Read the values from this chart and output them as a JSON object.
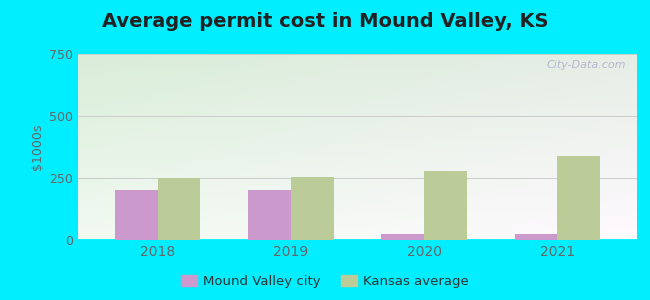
{
  "title": "Average permit cost in Mound Valley, KS",
  "ylabel": "$1000s",
  "years": [
    2018,
    2019,
    2020,
    2021
  ],
  "city_values": [
    200,
    200,
    25,
    25
  ],
  "avg_values": [
    248,
    253,
    278,
    340
  ],
  "city_color": "#cc99cc",
  "avg_color": "#bbcc99",
  "ylim": [
    0,
    750
  ],
  "yticks": [
    0,
    250,
    500,
    750
  ],
  "bar_width": 0.32,
  "outer_bg": "#00eeff",
  "title_fontsize": 14,
  "legend_labels": [
    "Mound Valley city",
    "Kansas average"
  ],
  "watermark": "City-Data.com",
  "grid_color": "#cccccc",
  "tick_color": "#666666"
}
